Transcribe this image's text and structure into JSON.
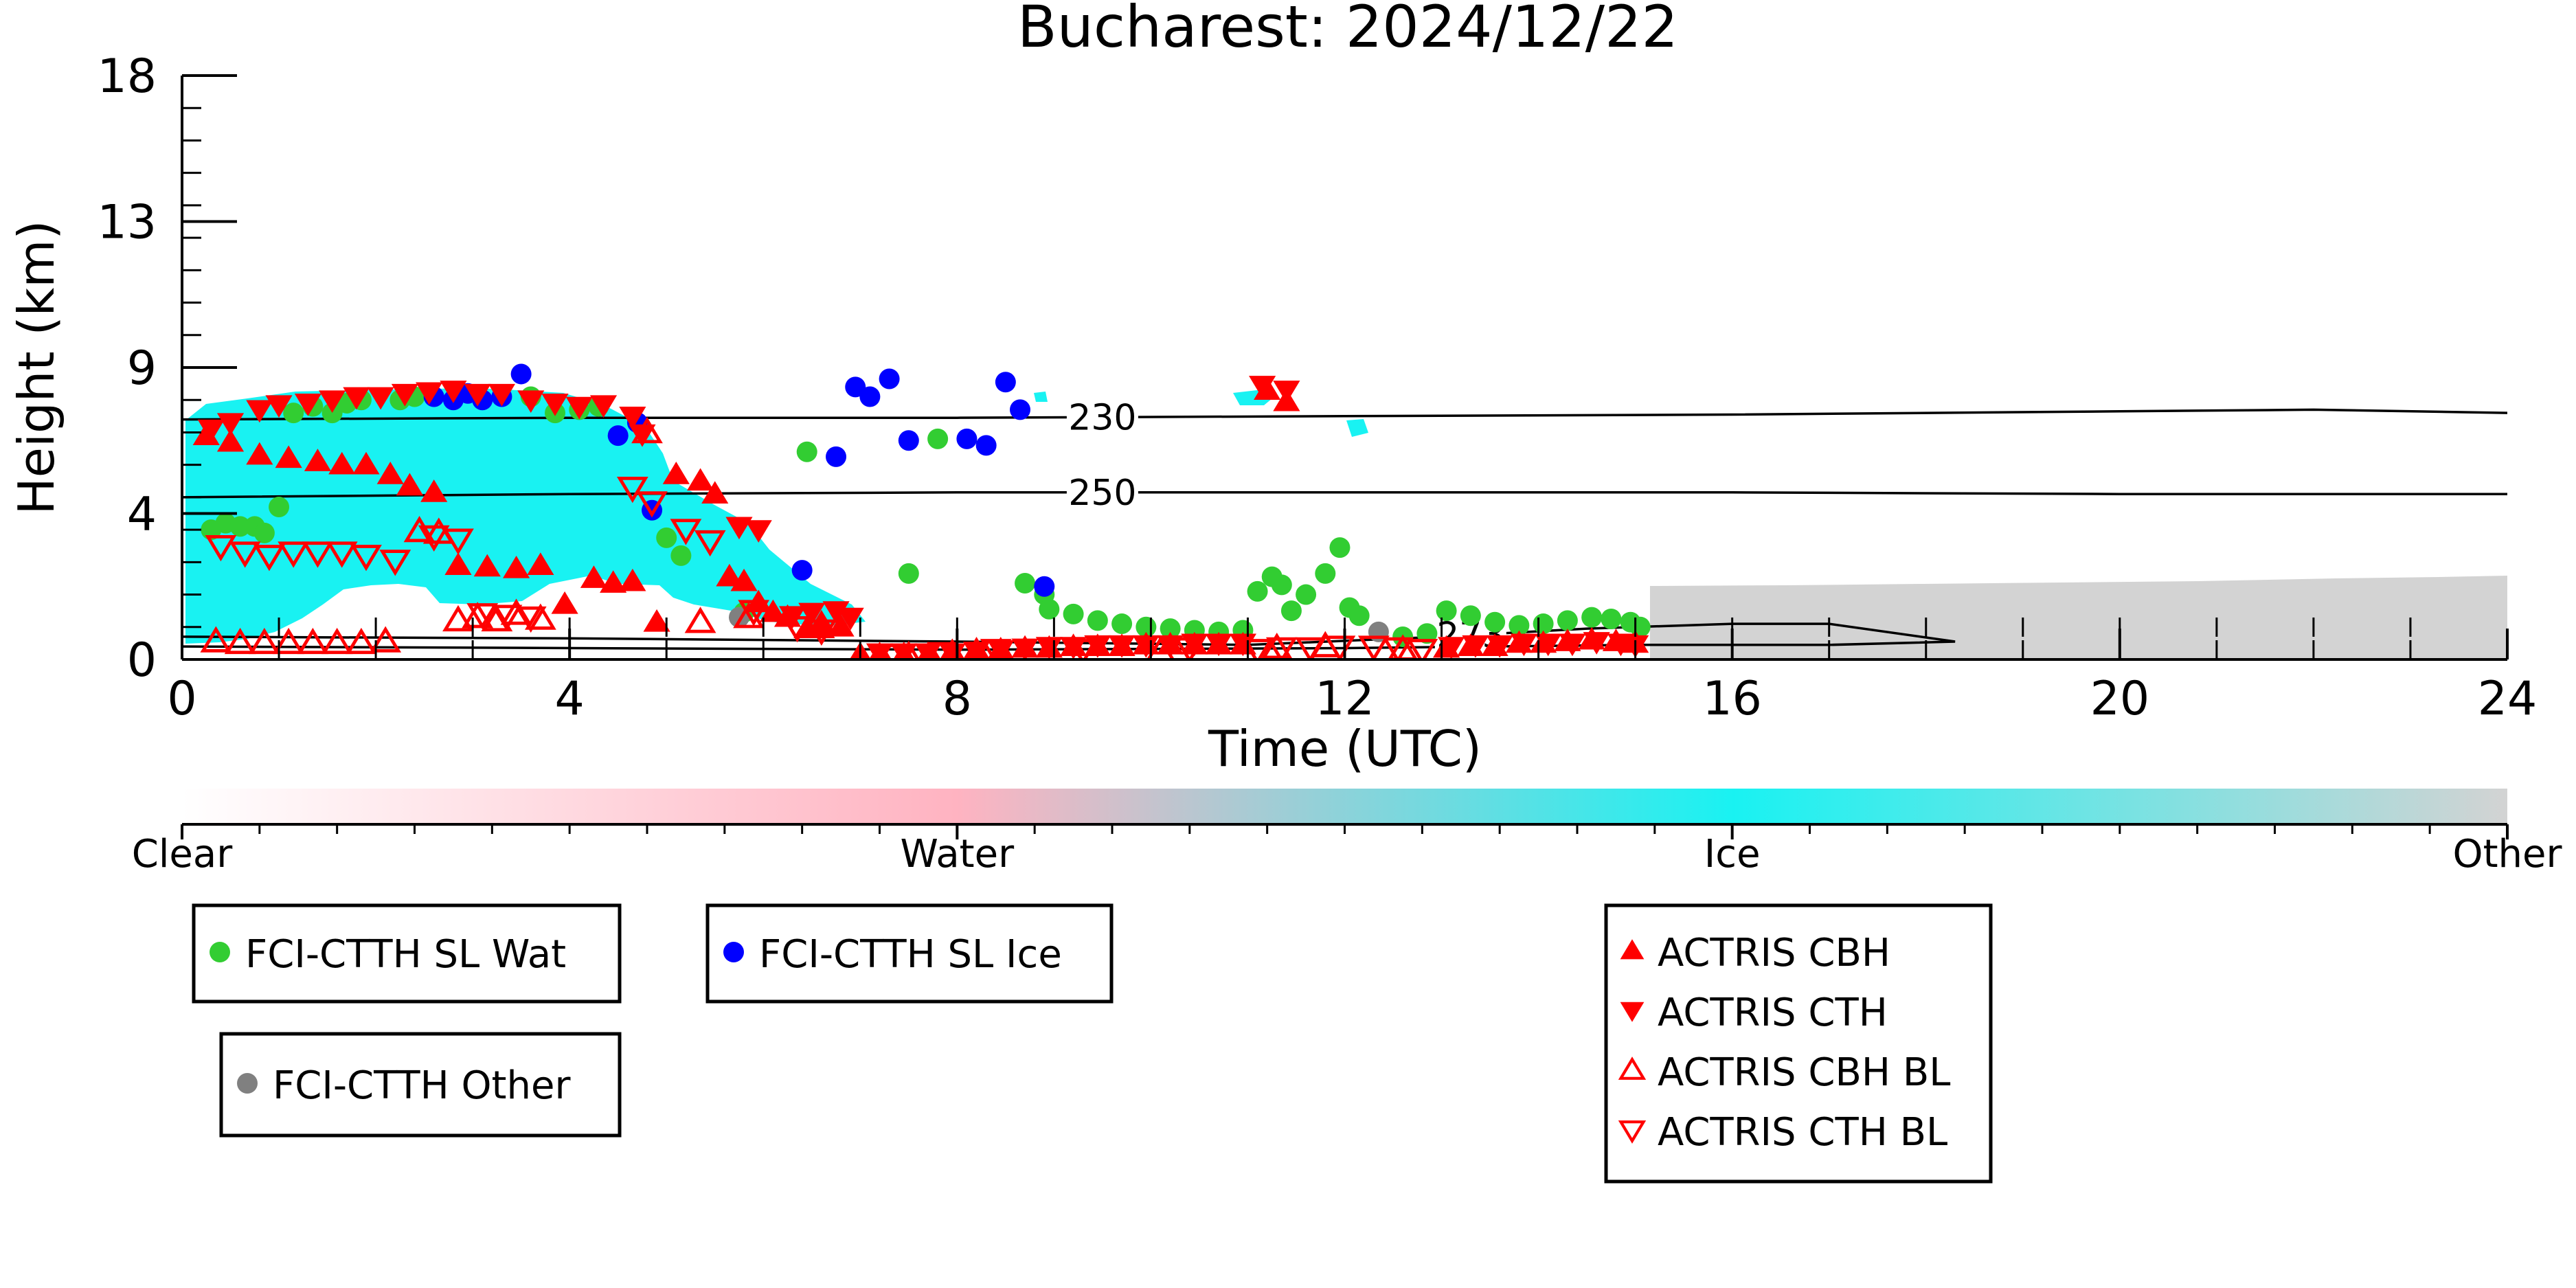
{
  "chart_data": {
    "type": "scatter",
    "title": "Bucharest: 2024/12/22",
    "xlabel": "Time (UTC)",
    "ylabel": "Height (km)",
    "xlim": [
      0,
      24
    ],
    "ylim": [
      0,
      18
    ],
    "xticks": [
      "0",
      "4",
      "8",
      "12",
      "16",
      "20",
      "24"
    ],
    "xtick_values": [
      0,
      4,
      8,
      12,
      16,
      20,
      24
    ],
    "yticks": [
      "0",
      "4",
      "9",
      "13",
      "18"
    ],
    "ytick_values": [
      0,
      4.5,
      9,
      13.5,
      18
    ],
    "colorbar": {
      "labels": [
        "Clear",
        "Water",
        "Ice",
        "Other"
      ],
      "colors": [
        "#ffffff",
        "#ffb3c1",
        "#19f2f2",
        "#d3d3d3"
      ]
    },
    "colors": {
      "ice": "#19f2f2",
      "other": "#d3d3d3",
      "fci_water": "#32cd32",
      "fci_ice": "#0000ff",
      "fci_other": "#808080",
      "actris": "#ff0000"
    },
    "contours": [
      {
        "label": "230",
        "label_x": 9.5,
        "points": [
          [
            0,
            7.4
          ],
          [
            4,
            7.45
          ],
          [
            8,
            7.45
          ],
          [
            12,
            7.5
          ],
          [
            16,
            7.55
          ],
          [
            20,
            7.65
          ],
          [
            22,
            7.7
          ],
          [
            24,
            7.6
          ]
        ]
      },
      {
        "label": "250",
        "label_x": 9.5,
        "points": [
          [
            0,
            5.0
          ],
          [
            4,
            5.1
          ],
          [
            8,
            5.15
          ],
          [
            12,
            5.15
          ],
          [
            16,
            5.15
          ],
          [
            20,
            5.1
          ],
          [
            24,
            5.1
          ]
        ]
      },
      {
        "label": "273",
        "label_x": 13.3,
        "points": [
          [
            0,
            0.7
          ],
          [
            4,
            0.65
          ],
          [
            8,
            0.55
          ],
          [
            11,
            0.45
          ],
          [
            13,
            0.7
          ],
          [
            14.5,
            0.95
          ],
          [
            16,
            1.1
          ],
          [
            17,
            1.1
          ],
          [
            18.3,
            0.55
          ],
          [
            17,
            0.45
          ],
          [
            15,
            0.45
          ],
          [
            12,
            0.35
          ],
          [
            8,
            0.3
          ],
          [
            0,
            0.4
          ]
        ]
      }
    ],
    "series": [
      {
        "name": "FCI-CTTH SL Wat",
        "marker": "circle",
        "color": "#32cd32",
        "x": [
          0.3,
          0.45,
          0.6,
          0.75,
          0.85,
          1.0,
          1.15,
          1.35,
          1.55,
          1.7,
          1.85,
          2.25,
          2.4,
          3.6,
          3.85,
          4.1,
          4.3,
          5.0,
          5.15,
          5.8,
          6.45,
          7.5,
          7.8,
          8.7,
          8.9,
          8.95,
          9.2,
          9.45,
          9.7,
          9.95,
          10.2,
          10.45,
          10.7,
          10.95,
          11.1,
          11.25,
          11.35,
          11.45,
          11.6,
          11.8,
          11.95,
          12.05,
          12.15,
          12.6,
          12.85,
          13.05,
          13.3,
          13.55,
          13.8,
          14.05,
          14.3,
          14.55,
          14.75,
          14.95,
          15.05
        ],
        "y": [
          4.0,
          4.2,
          4.1,
          4.1,
          3.9,
          4.7,
          7.6,
          7.8,
          7.6,
          7.9,
          8.0,
          8.0,
          8.1,
          8.1,
          7.6,
          7.7,
          7.8,
          3.75,
          3.2,
          1.45,
          6.4,
          2.65,
          6.8,
          2.35,
          2.0,
          1.55,
          1.4,
          1.2,
          1.1,
          1.0,
          0.95,
          0.9,
          0.85,
          0.9,
          2.1,
          2.55,
          2.3,
          1.5,
          2.0,
          2.65,
          3.45,
          1.6,
          1.35,
          0.7,
          0.8,
          1.5,
          1.35,
          1.15,
          1.05,
          1.1,
          1.2,
          1.3,
          1.25,
          1.15,
          1.0
        ]
      },
      {
        "name": "FCI-CTTH SL Ice",
        "marker": "circle",
        "color": "#0000ff",
        "x": [
          2.6,
          2.8,
          2.95,
          3.1,
          3.3,
          3.5,
          4.5,
          4.7,
          4.85,
          6.4,
          6.75,
          6.95,
          7.1,
          7.3,
          7.5,
          8.1,
          8.3,
          8.5,
          8.65,
          8.9
        ],
        "y": [
          8.1,
          8.0,
          8.2,
          8.0,
          8.1,
          8.8,
          6.9,
          7.3,
          4.6,
          2.75,
          6.25,
          8.4,
          8.1,
          8.65,
          6.75,
          6.8,
          6.6,
          8.55,
          7.7,
          2.25
        ]
      },
      {
        "name": "FCI-CTTH Other",
        "marker": "circle",
        "color": "#808080",
        "x": [
          5.75,
          12.35
        ],
        "y": [
          1.3,
          0.85
        ]
      },
      {
        "name": "ACTRIS CBH",
        "marker": "triangle-up",
        "color": "#ff0000",
        "x": [
          0.25,
          0.5,
          0.8,
          1.1,
          1.4,
          1.65,
          1.9,
          2.15,
          2.35,
          2.6,
          2.85,
          3.15,
          3.45,
          3.7,
          3.95,
          4.25,
          4.45,
          4.65,
          4.9,
          5.1,
          5.35,
          5.5,
          5.65,
          5.8,
          5.95,
          6.1,
          6.25,
          6.45,
          6.6,
          6.8,
          7.0,
          7.2,
          7.45,
          7.7,
          7.95,
          8.2,
          8.45,
          8.7,
          8.95,
          9.2,
          9.45,
          9.7,
          9.95,
          10.2,
          10.45,
          10.7,
          10.95,
          11.2,
          11.4,
          13.05,
          13.3,
          13.55,
          13.8,
          14.05,
          14.3,
          14.55,
          14.8,
          15.0
        ],
        "y": [
          6.9,
          6.7,
          6.3,
          6.2,
          6.1,
          6.0,
          6.0,
          5.7,
          5.35,
          5.15,
          2.9,
          2.85,
          2.8,
          2.9,
          1.7,
          2.5,
          2.35,
          2.4,
          1.15,
          5.7,
          5.5,
          5.1,
          2.55,
          2.4,
          1.75,
          1.45,
          1.3,
          0.95,
          0.95,
          1.0,
          0.15,
          0.15,
          0.15,
          0.15,
          0.25,
          0.3,
          0.3,
          0.35,
          0.35,
          0.4,
          0.4,
          0.4,
          0.45,
          0.45,
          0.45,
          0.45,
          0.45,
          8.3,
          7.95,
          0.35,
          0.4,
          0.4,
          0.5,
          0.5,
          0.55,
          0.6,
          0.55,
          0.5
        ]
      },
      {
        "name": "ACTRIS CTH",
        "marker": "triangle-down",
        "color": "#ff0000",
        "x": [
          0.3,
          0.5,
          0.8,
          1.0,
          1.3,
          1.55,
          1.8,
          2.05,
          2.3,
          2.55,
          2.8,
          3.05,
          3.3,
          3.6,
          3.85,
          4.1,
          4.35,
          4.65,
          4.75,
          5.75,
          5.95,
          6.3,
          6.5,
          6.75,
          6.9,
          7.2,
          7.45,
          7.7,
          7.95,
          8.2,
          8.45,
          8.7,
          8.95,
          9.2,
          9.45,
          9.7,
          9.95,
          10.2,
          10.45,
          10.7,
          10.95,
          11.15,
          11.4,
          13.1,
          13.35,
          13.6,
          13.85,
          14.1,
          14.35,
          14.6,
          14.85,
          15.0
        ],
        "y": [
          7.1,
          7.3,
          7.7,
          7.85,
          7.9,
          8.0,
          8.1,
          8.1,
          8.2,
          8.25,
          8.3,
          8.2,
          8.2,
          8.0,
          7.9,
          7.8,
          7.85,
          7.5,
          6.95,
          4.1,
          4.0,
          1.35,
          1.45,
          1.5,
          1.3,
          0.2,
          0.2,
          0.2,
          0.2,
          0.25,
          0.3,
          0.35,
          0.4,
          0.4,
          0.45,
          0.45,
          0.45,
          0.45,
          0.5,
          0.5,
          0.5,
          8.45,
          8.3,
          0.4,
          0.45,
          0.45,
          0.5,
          0.5,
          0.5,
          0.55,
          0.5,
          0.45
        ]
      },
      {
        "name": "ACTRIS CBH BL",
        "marker": "triangle-up-open",
        "color": "#ff0000",
        "x": [
          0.35,
          0.6,
          0.85,
          1.1,
          1.35,
          1.6,
          1.85,
          2.1,
          2.45,
          2.65,
          2.85,
          3.05,
          3.25,
          3.45,
          3.7,
          4.8,
          5.35,
          5.85,
          6.6,
          7.5,
          8.2,
          10.1,
          11.3,
          11.8,
          12.6
        ],
        "y": [
          0.55,
          0.5,
          0.5,
          0.5,
          0.5,
          0.5,
          0.5,
          0.55,
          3.95,
          3.9,
          1.2,
          1.3,
          1.2,
          1.4,
          1.25,
          7.0,
          1.15,
          1.3,
          1.05,
          0.1,
          0.15,
          0.25,
          0.35,
          0.4,
          0.3
        ]
      },
      {
        "name": "ACTRIS CTH BL",
        "marker": "triangle-down-open",
        "color": "#ff0000",
        "x": [
          0.4,
          0.65,
          0.9,
          1.15,
          1.4,
          1.65,
          1.9,
          2.2,
          2.6,
          2.85,
          3.1,
          3.35,
          3.6,
          4.65,
          4.85,
          5.2,
          5.45,
          5.9,
          6.35,
          6.6,
          7.35,
          7.85,
          8.4,
          9.3,
          10.4,
          11.1,
          11.35,
          11.65,
          11.95,
          12.3,
          12.55,
          12.8
        ],
        "y": [
          3.5,
          3.3,
          3.2,
          3.3,
          3.3,
          3.3,
          3.2,
          3.05,
          3.8,
          3.7,
          1.4,
          1.35,
          1.3,
          5.3,
          4.85,
          4.0,
          3.65,
          1.5,
          1.0,
          0.9,
          0.15,
          0.2,
          0.3,
          0.3,
          0.35,
          0.3,
          0.35,
          0.35,
          0.4,
          0.4,
          0.35,
          0.3
        ]
      }
    ]
  },
  "legends": [
    {
      "entries": [
        {
          "label": "FCI-CTTH SL Wat",
          "marker": "circle",
          "color": "#32cd32"
        }
      ]
    },
    {
      "entries": [
        {
          "label": "FCI-CTTH SL Ice",
          "marker": "circle",
          "color": "#0000ff"
        }
      ]
    },
    {
      "entries": [
        {
          "label": "FCI-CTTH Other",
          "marker": "circle",
          "color": "#808080"
        }
      ]
    },
    {
      "entries": [
        {
          "label": "ACTRIS CBH",
          "marker": "triangle-up",
          "color": "#ff0000"
        },
        {
          "label": "ACTRIS CTH",
          "marker": "triangle-down",
          "color": "#ff0000"
        },
        {
          "label": "ACTRIS CBH BL",
          "marker": "triangle-up-open",
          "color": "#ff0000"
        },
        {
          "label": "ACTRIS CTH BL",
          "marker": "triangle-down-open",
          "color": "#ff0000"
        }
      ]
    }
  ]
}
